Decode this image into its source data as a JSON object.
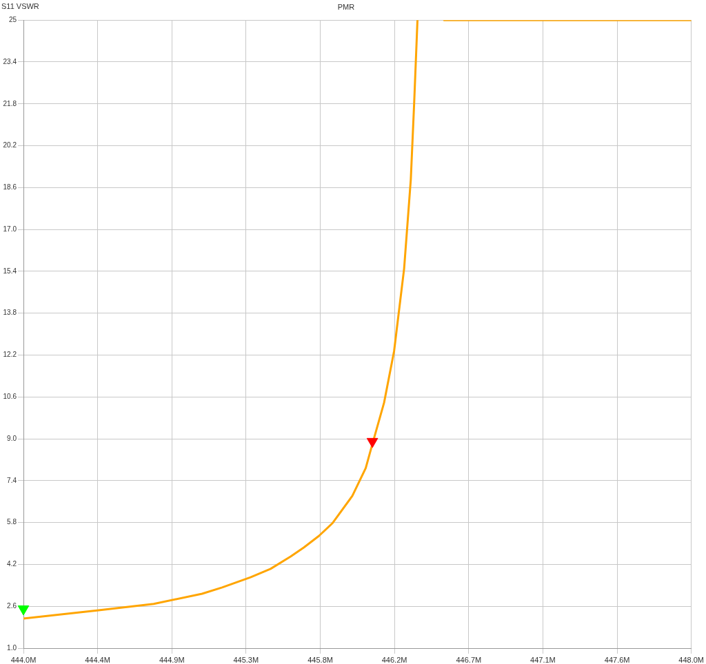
{
  "chart_data": {
    "type": "line",
    "title": "PMR",
    "ylabel": "S11 VSWR",
    "xlim": [
      444.0,
      448.0
    ],
    "xticks": [
      {
        "value": 444.0,
        "label": "444.0M"
      },
      {
        "value": 444.444,
        "label": "444.4M"
      },
      {
        "value": 444.889,
        "label": "444.9M"
      },
      {
        "value": 445.333,
        "label": "445.3M"
      },
      {
        "value": 445.778,
        "label": "445.8M"
      },
      {
        "value": 446.222,
        "label": "446.2M"
      },
      {
        "value": 446.667,
        "label": "446.7M"
      },
      {
        "value": 447.111,
        "label": "447.1M"
      },
      {
        "value": 447.556,
        "label": "447.6M"
      },
      {
        "value": 448.0,
        "label": "448.0M"
      }
    ],
    "ylim": [
      1.0,
      25
    ],
    "yticks": [
      {
        "value": 1.0,
        "label": "1.0"
      },
      {
        "value": 2.6,
        "label": "2.6"
      },
      {
        "value": 4.2,
        "label": "4.2"
      },
      {
        "value": 5.8,
        "label": "5.8"
      },
      {
        "value": 7.4,
        "label": "7.4"
      },
      {
        "value": 9.0,
        "label": "9.0"
      },
      {
        "value": 10.6,
        "label": "10.6"
      },
      {
        "value": 12.2,
        "label": "12.2"
      },
      {
        "value": 13.8,
        "label": "13.8"
      },
      {
        "value": 15.4,
        "label": "15.4"
      },
      {
        "value": 17.0,
        "label": "17.0"
      },
      {
        "value": 18.6,
        "label": "18.6"
      },
      {
        "value": 20.2,
        "label": "20.2"
      },
      {
        "value": 21.8,
        "label": "21.8"
      },
      {
        "value": 23.4,
        "label": "23.4"
      },
      {
        "value": 25,
        "label": "25"
      }
    ],
    "grid": true,
    "legend": false,
    "series": [
      {
        "color": "#ffa500",
        "marker": "none",
        "line_style": "solid",
        "x": [
          444.0,
          444.45,
          444.78,
          445.07,
          445.19,
          445.36,
          445.48,
          445.6,
          445.68,
          445.77,
          445.85,
          445.97,
          446.05,
          446.09,
          446.16,
          446.22,
          446.28,
          446.32,
          446.34,
          446.36,
          446.45,
          446.52,
          448.0
        ],
        "values": [
          2.13,
          2.45,
          2.69,
          3.08,
          3.32,
          3.71,
          4.03,
          4.5,
          4.85,
          5.29,
          5.77,
          6.82,
          7.88,
          8.8,
          10.38,
          12.35,
          15.5,
          18.9,
          21.8,
          25,
          null,
          25,
          25
        ]
      },
      {
        "type": "scatter",
        "marker": "triangle",
        "colors": [
          "#00ff00",
          "#ff0000"
        ],
        "x": [
          444.0,
          446.09
        ],
        "values": [
          2.5,
          8.9
        ]
      }
    ]
  }
}
